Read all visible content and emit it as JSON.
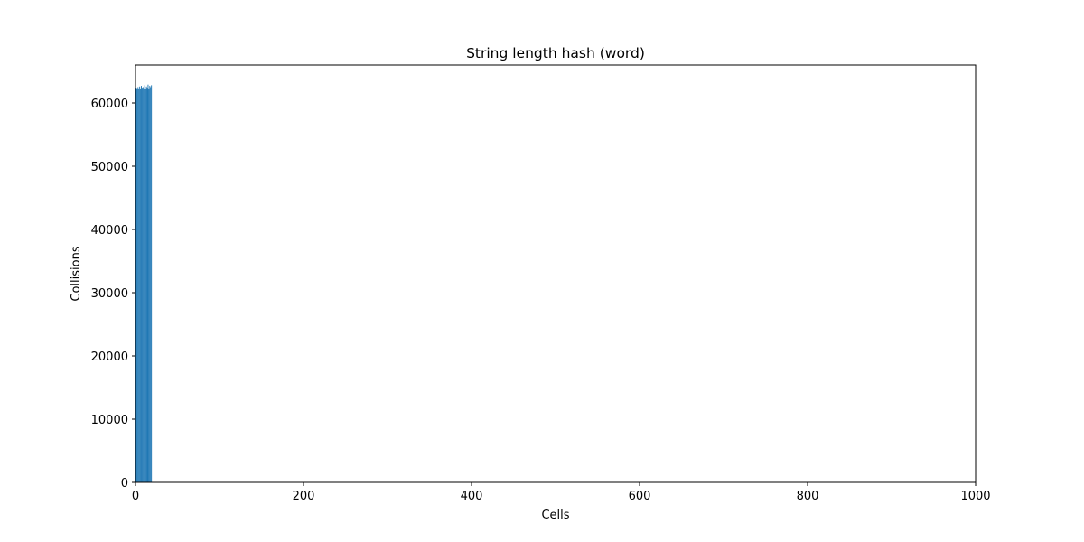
{
  "chart_data": {
    "type": "bar",
    "title": "String length hash (word)",
    "xlabel": "Cells",
    "ylabel": "Collisions",
    "xlim": [
      0,
      1000
    ],
    "ylim": [
      0,
      66000
    ],
    "xticks": [
      0,
      200,
      400,
      600,
      800,
      1000
    ],
    "yticks": [
      0,
      10000,
      20000,
      30000,
      40000,
      50000,
      60000
    ],
    "grid": false,
    "bar_color": "#1f77b4",
    "x": [
      1,
      2,
      3,
      4,
      5,
      6,
      7,
      8,
      9,
      10,
      11,
      12,
      13,
      14,
      15,
      16,
      17,
      18,
      19
    ],
    "values": [
      62400,
      62300,
      62500,
      62200,
      62600,
      62300,
      62700,
      62400,
      62500,
      62300,
      62800,
      62200,
      62600,
      62400,
      62900,
      62300,
      62700,
      62500,
      62800
    ]
  }
}
